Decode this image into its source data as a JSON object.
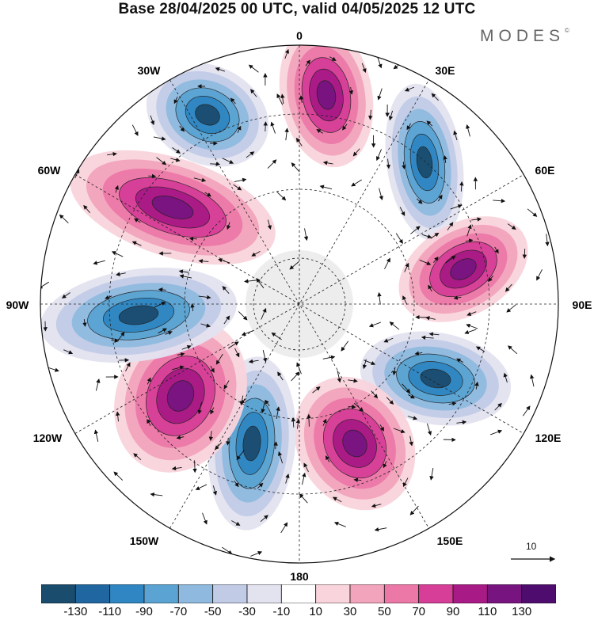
{
  "title": "Base 28/04/2025 00 UTC, valid 04/05/2025 12 UTC",
  "brand": "MODES",
  "brand_mark": "©",
  "longitude_labels": [
    {
      "id": "lon-0",
      "text": "0"
    },
    {
      "id": "lon-30e",
      "text": "30E"
    },
    {
      "id": "lon-60e",
      "text": "60E"
    },
    {
      "id": "lon-90e",
      "text": "90E"
    },
    {
      "id": "lon-120e",
      "text": "120E"
    },
    {
      "id": "lon-150e",
      "text": "150E"
    },
    {
      "id": "lon-180",
      "text": "180"
    },
    {
      "id": "lon-150w",
      "text": "150W"
    },
    {
      "id": "lon-120w",
      "text": "120W"
    },
    {
      "id": "lon-90w",
      "text": "90W"
    },
    {
      "id": "lon-60w",
      "text": "60W"
    },
    {
      "id": "lon-30w",
      "text": "30W"
    }
  ],
  "reference_vector_label": "10",
  "colorbar": {
    "ticks": [
      "-130",
      "-110",
      "-90",
      "-70",
      "-50",
      "-30",
      "-10",
      "10",
      "30",
      "50",
      "70",
      "90",
      "110",
      "130"
    ],
    "colors": [
      "#1a4c6e",
      "#2066a0",
      "#2f86c2",
      "#5aa3d2",
      "#8fb9df",
      "#c1cbe6",
      "#e3e3f0",
      "#ffffff",
      "#f9d4dc",
      "#f2a4bc",
      "#ec78a8",
      "#d63e97",
      "#a81a86",
      "#771480",
      "#4e0d6e"
    ]
  },
  "colors": {
    "pole_fill": "#ececec",
    "strong_pos": "#771480",
    "strong_neg": "#1a4c6e"
  }
}
